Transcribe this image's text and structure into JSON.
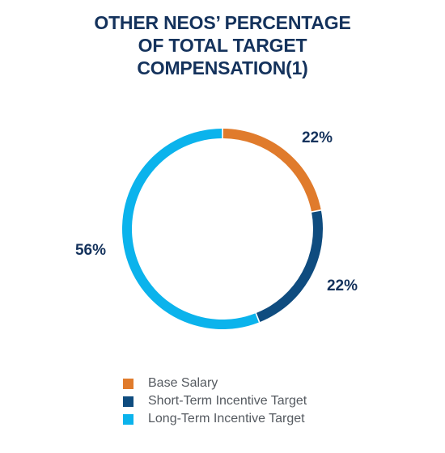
{
  "title_lines": [
    "OTHER NEOS’ PERCENTAGE",
    "OF TOTAL TARGET",
    "COMPENSATION(1)"
  ],
  "chart_data": {
    "type": "pie",
    "variant": "donut",
    "title": "OTHER NEOS’ PERCENTAGE OF TOTAL TARGET COMPENSATION(1)",
    "categories": [
      "Base Salary",
      "Short-Term Incentive Target",
      "Long-Term Incentive Target"
    ],
    "values": [
      22,
      22,
      56
    ],
    "labels": [
      "22%",
      "22%",
      "56%"
    ],
    "colors": [
      "#e07b2c",
      "#0f4c7f",
      "#0bb3ec"
    ],
    "legend_position": "bottom",
    "grid": false
  }
}
